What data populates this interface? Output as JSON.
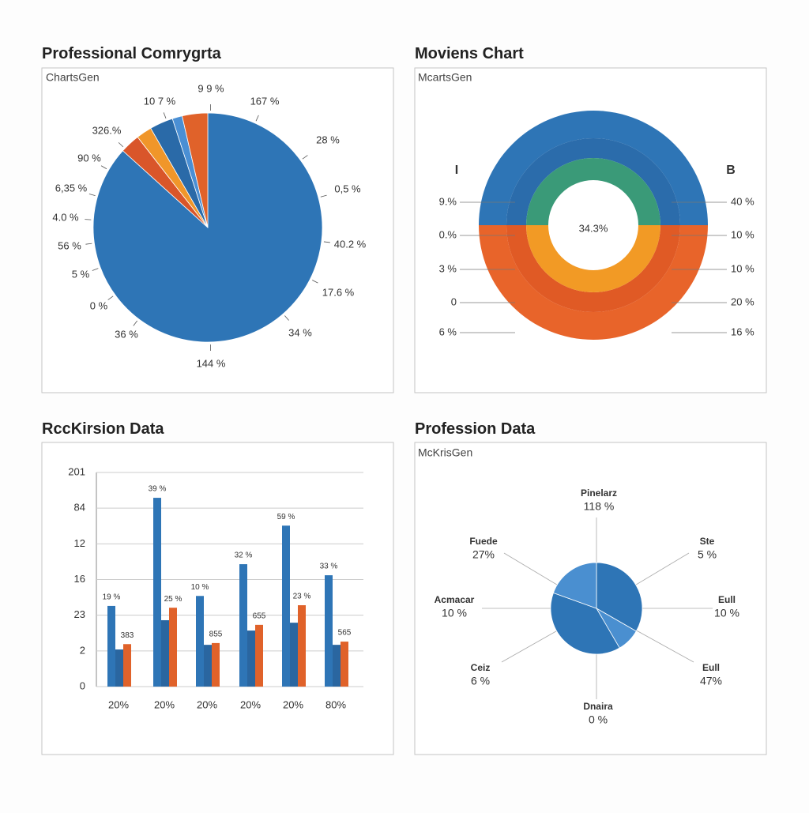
{
  "chart_data": [
    {
      "type": "pie",
      "title": "Professional Comrygrta",
      "subtitle": "ChartsGen",
      "values": [
        86.7,
        2.8,
        2.2,
        3.3,
        1.4,
        3.6
      ],
      "colors": [
        "#2e75b6",
        "#d9562a",
        "#f0962a",
        "#2a6aa8",
        "#4a8fd4",
        "#e0622a"
      ],
      "annotations": [
        "9 9 %",
        "10 7 %",
        "167 %",
        "28 %",
        "326.%",
        "0,5 %",
        "90 %",
        "6,35 %",
        "40.2 %",
        "4.0 %",
        "56 %",
        "5 %",
        "17.6 %",
        "0 %",
        "36 %",
        "34 %",
        "144 %"
      ]
    },
    {
      "type": "donut",
      "title": "Moviens Chart",
      "subtitle": "McartsGen",
      "center_label": "34.3%",
      "rings": [
        {
          "values": [
            50,
            50
          ],
          "colors": [
            "#2e75b6",
            "#e8642a"
          ]
        },
        {
          "values": [
            50,
            50
          ],
          "colors": [
            "#2b6cab",
            "#e05a25"
          ]
        },
        {
          "values": [
            50,
            50
          ],
          "colors": [
            "#3a9a78",
            "#f29a25"
          ]
        }
      ],
      "side_labels": [
        "I",
        "B"
      ],
      "left_annotations": [
        "9.%",
        "0.%",
        "3 %",
        "0",
        "6 %"
      ],
      "right_annotations": [
        "40 %",
        "10 %",
        "10 %",
        "20 %",
        "16 %"
      ]
    },
    {
      "type": "bar",
      "title": "RccKirsion Data",
      "categories": [
        "20%",
        "20%",
        "20%",
        "20%",
        "20%",
        "80%"
      ],
      "series": [
        {
          "color": "#2e75b6",
          "values": [
            2.26,
            5.29,
            2.54,
            3.43,
            4.51,
            3.12
          ]
        },
        {
          "color": "#2a66a0",
          "values": [
            1.04,
            1.86,
            1.17,
            1.57,
            1.79,
            1.17
          ]
        },
        {
          "color": "#e0622a",
          "values": [
            1.19,
            2.21,
            1.22,
            1.73,
            2.28,
            1.26
          ]
        }
      ],
      "bar_notes": [
        [
          "19 %",
          "383"
        ],
        [
          "39 %",
          "25 %"
        ],
        [
          "10 %",
          "855"
        ],
        [
          "32 %",
          "655"
        ],
        [
          "59 %",
          "23 %"
        ],
        [
          "33 %",
          "565"
        ]
      ],
      "ylim": [
        0,
        6
      ],
      "yticks": [
        0,
        {
          "value": 1,
          "label": "2"
        },
        {
          "value": 2,
          "label": "23"
        },
        {
          "value": 3,
          "label": "16"
        },
        {
          "value": 4,
          "label": "12"
        },
        {
          "value": 5,
          "label": "84"
        },
        {
          "value": 6,
          "label": "201"
        }
      ],
      "grid": true
    },
    {
      "type": "pie",
      "title": "Profession Data",
      "subtitle": "McKrisGen",
      "values": [
        33.3,
        8.3,
        38.9,
        19.5
      ],
      "colors": [
        "#2e75b6",
        "#4a8fd0",
        "#2e75b6",
        "#4a8fd0"
      ],
      "callouts": [
        {
          "name": "Pinelarz",
          "label": "118 %",
          "color": "#3a7fc0"
        },
        {
          "name": "Fuede",
          "label": "27%",
          "color": "#3a7fc0"
        },
        {
          "name": "Ste",
          "label": "5 %",
          "color": "#e8902a"
        },
        {
          "name": "Acmacar",
          "label": "10 %",
          "color": "#2a5f9a"
        },
        {
          "name": "Eull",
          "label": "10 %",
          "color": "#2a5f9a"
        },
        {
          "name": "Ceiz",
          "label": "6 %",
          "color": "#e8902a"
        },
        {
          "name": "Eull",
          "label": "47%",
          "color": "#2a5f9a"
        },
        {
          "name": "Dnaira",
          "label": "0 %",
          "color": "#e8902a"
        }
      ]
    }
  ]
}
